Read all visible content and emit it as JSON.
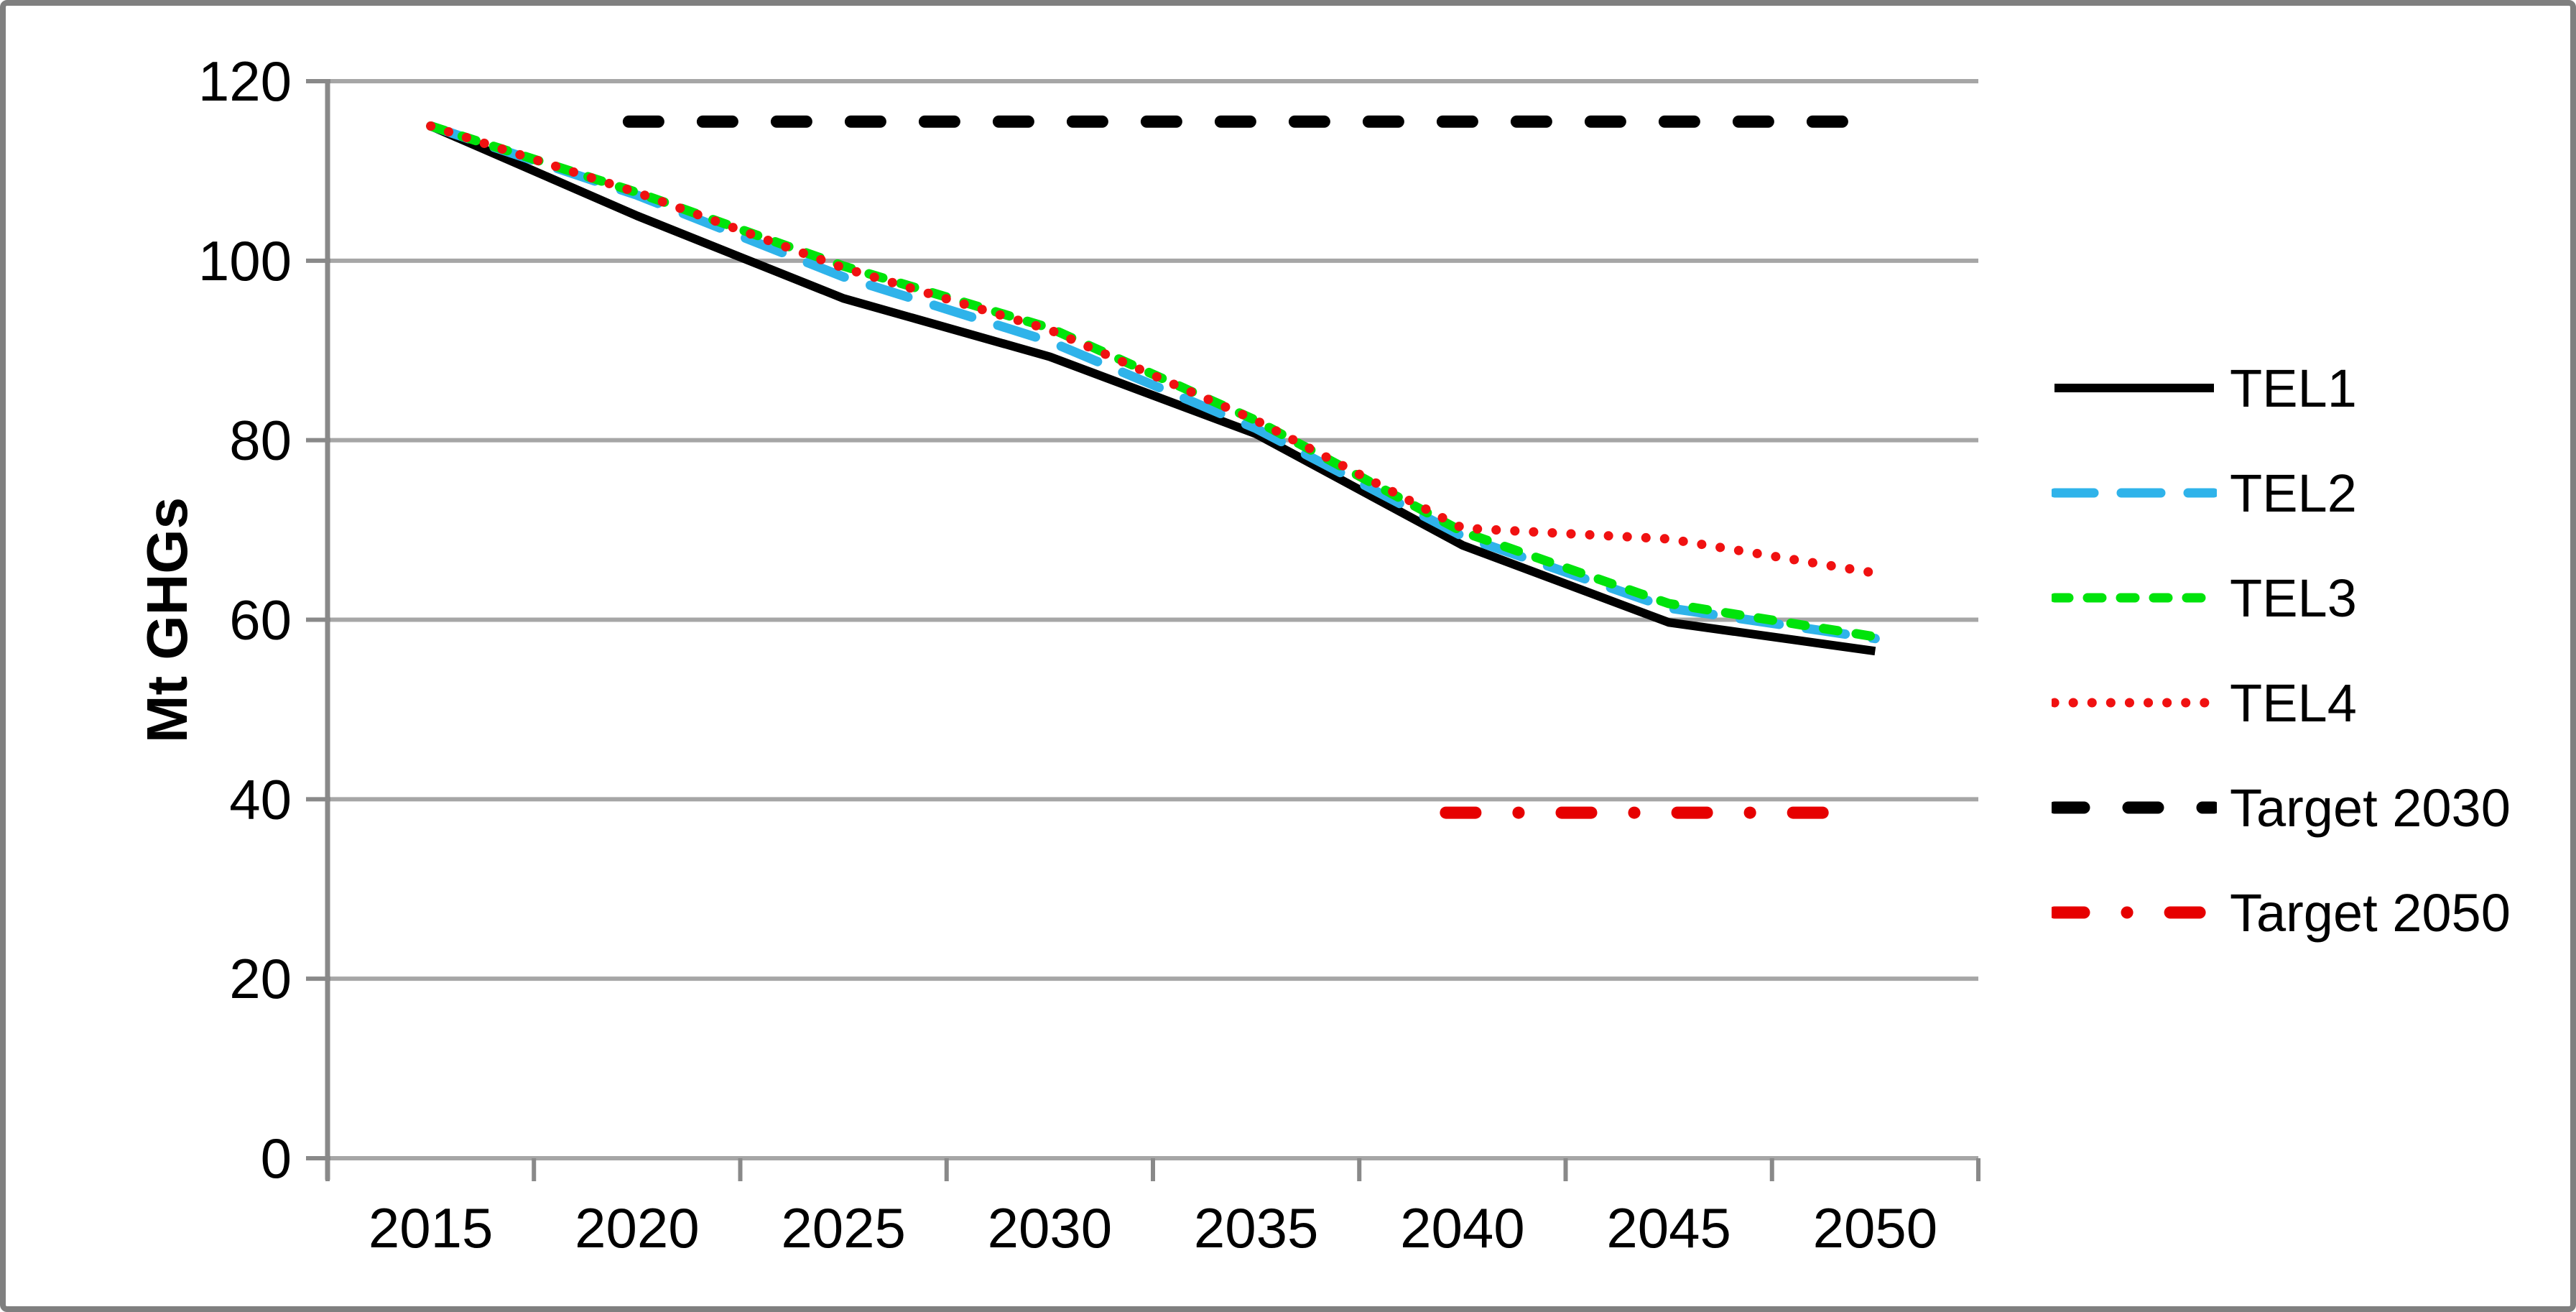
{
  "frame": {
    "border_color": "#7f7f7f",
    "background": "#ffffff",
    "gridline_color": "#a6a6a6",
    "axis_color": "#898989"
  },
  "chart_data": {
    "type": "line",
    "title": "",
    "xlabel": "",
    "ylabel": "Mt GHGs",
    "x_categories": [
      2015,
      2020,
      2025,
      2030,
      2035,
      2040,
      2045,
      2050
    ],
    "y_ticks": [
      0,
      20,
      40,
      60,
      80,
      100,
      120
    ],
    "ylim": [
      0,
      120
    ],
    "grid": "horizontal-only",
    "legend_position": "right",
    "series": [
      {
        "name": "TEL1",
        "color": "#000000",
        "style": "solid",
        "width": 12,
        "values": [
          115,
          105,
          95.8,
          89.3,
          80.7,
          68.3,
          59.7,
          56.5
        ]
      },
      {
        "name": "TEL2",
        "color": "#2fb3ea",
        "style": "long-dash",
        "width": 13,
        "values": [
          115,
          107.3,
          98.2,
          91.0,
          81.3,
          69.3,
          61.3,
          57.9
        ]
      },
      {
        "name": "TEL3",
        "color": "#00e30b",
        "style": "dash",
        "width": 13,
        "values": [
          115,
          107.6,
          99.4,
          92.5,
          82.2,
          69.8,
          61.8,
          58.1
        ]
      },
      {
        "name": "TEL4",
        "color": "#f01111",
        "style": "dot",
        "width": 13,
        "values": [
          115,
          107.6,
          99.2,
          92.3,
          82.2,
          70.2,
          69.0,
          65.2
        ]
      },
      {
        "name": "Target 2030",
        "color": "#000000",
        "style": "thick-dash",
        "width": 17,
        "value": 115.5,
        "x_span": [
          2019.8,
          2049.2
        ]
      },
      {
        "name": "Target 2050",
        "color": "#e60000",
        "style": "dash-dot",
        "width": 17,
        "value": 38.5,
        "x_span": [
          2039.6,
          2049.2
        ]
      }
    ]
  }
}
